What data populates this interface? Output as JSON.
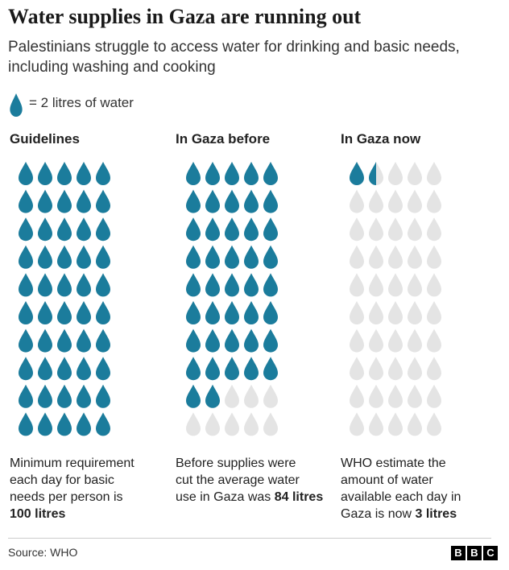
{
  "chart_data": {
    "type": "pictogram",
    "title": "Water supplies in Gaza are running out",
    "subtitle": "Palestinians struggle to access water for drinking and basic needs, including washing and cooking",
    "legend_label": "= 2 litres of water",
    "unit": 2,
    "color": "#1b7c9c",
    "empty_color": "#e4e4e4",
    "categories": [
      "Guidelines",
      "In Gaza before",
      "In Gaza now"
    ],
    "values": [
      100,
      84,
      3
    ],
    "value_labels": [
      "100 litres",
      "84 litres",
      "3 litres"
    ],
    "descriptions": [
      [
        "Minimum requirement",
        "each day for basic",
        "needs per person is"
      ],
      [
        "Before supplies were",
        "cut the average water",
        "use in Gaza was"
      ],
      [
        "WHO estimate the",
        "amount of water",
        "available each day in",
        "Gaza is now"
      ]
    ],
    "source": "Source: WHO",
    "logo": [
      "B",
      "B",
      "C"
    ]
  }
}
